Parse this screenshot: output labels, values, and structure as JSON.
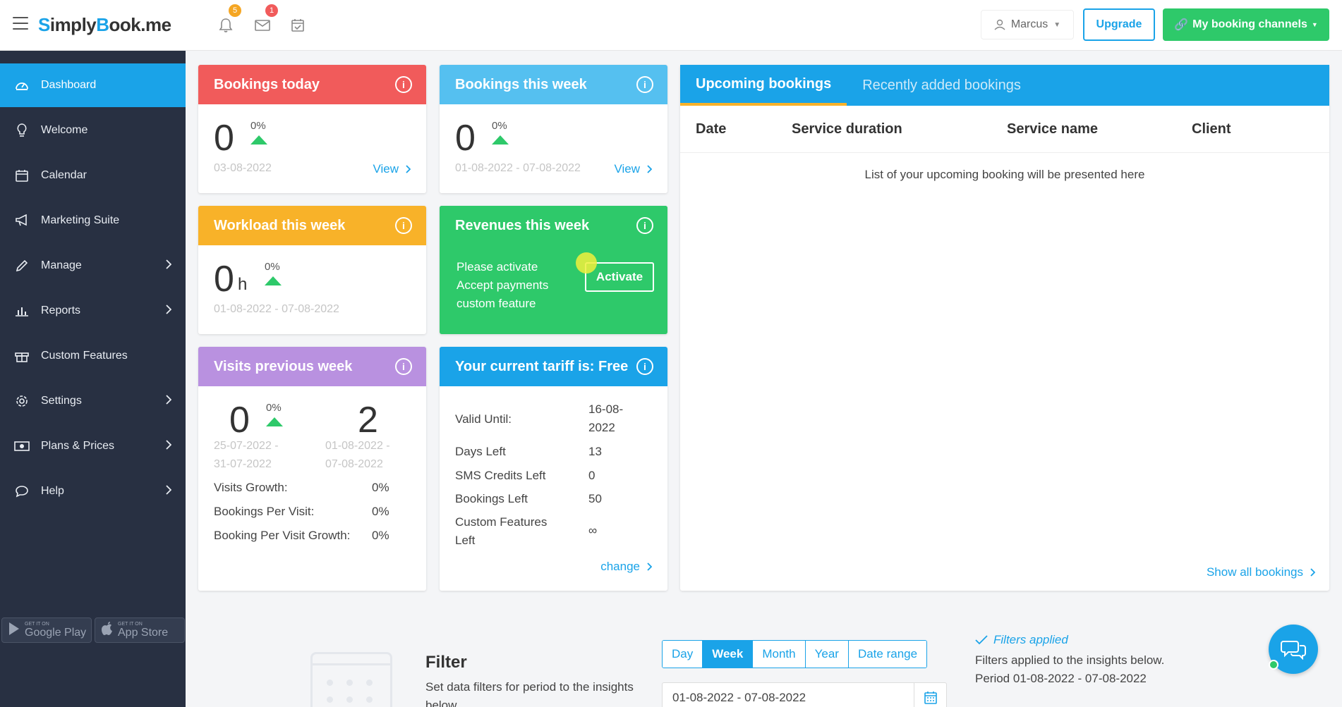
{
  "app": {
    "logo_prefix": "S",
    "logo_mid": "imply",
    "logo_b": "B",
    "logo_rest": "ook.me"
  },
  "topbar": {
    "notifications_count": "5",
    "messages_count": "1",
    "user_name": "Marcus",
    "upgrade_label": "Upgrade",
    "channels_label": "My booking channels"
  },
  "sidebar": {
    "items": [
      {
        "label": "Dashboard",
        "icon": "dashboard-icon"
      },
      {
        "label": "Welcome",
        "icon": "bulb-icon"
      },
      {
        "label": "Calendar",
        "icon": "calendar-icon"
      },
      {
        "label": "Marketing Suite",
        "icon": "megaphone-icon"
      },
      {
        "label": "Manage",
        "icon": "pencil-icon"
      },
      {
        "label": "Reports",
        "icon": "bar-chart-icon"
      },
      {
        "label": "Custom Features",
        "icon": "gift-icon"
      },
      {
        "label": "Settings",
        "icon": "gear-icon"
      },
      {
        "label": "Plans & Prices",
        "icon": "money-icon"
      },
      {
        "label": "Help",
        "icon": "speech-bubble-icon"
      }
    ],
    "google_play_small": "GET IT ON",
    "google_play": "Google Play",
    "app_store_small": "GET IT ON",
    "app_store": "App Store"
  },
  "cards": {
    "bookings_today": {
      "title": "Bookings today",
      "value": "0",
      "pct": "0%",
      "date": "03-08-2022",
      "link": "View"
    },
    "bookings_week": {
      "title": "Bookings this week",
      "value": "0",
      "pct": "0%",
      "date": "01-08-2022 - 07-08-2022",
      "link": "View"
    },
    "workload_week": {
      "title": "Workload this week",
      "value": "0",
      "unit": "h",
      "pct": "0%",
      "date": "01-08-2022 - 07-08-2022"
    },
    "revenues_week": {
      "title": "Revenues this week",
      "line1": "Please activate",
      "line2": "Accept payments",
      "line3": "custom feature",
      "button": "Activate"
    },
    "visits_prev_week": {
      "title": "Visits previous week",
      "left_value": "0",
      "pct": "0%",
      "left_date1": "25-07-2022 -",
      "left_date2": "31-07-2022",
      "right_value": "2",
      "right_date1": "01-08-2022 -",
      "right_date2": "07-08-2022",
      "stats": [
        {
          "label": "Visits Growth:",
          "value": "0%"
        },
        {
          "label": "Bookings Per Visit:",
          "value": "0%"
        },
        {
          "label": "Booking Per Visit Growth:",
          "value": "0%"
        }
      ]
    },
    "tariff": {
      "title": "Your current tariff is: Free",
      "valid_label": "Valid Until:",
      "valid_value1": "16-08-",
      "valid_value2": "2022",
      "days_label": "Days Left",
      "days_value": "13",
      "sms_label": "SMS Credits Left",
      "sms_value": "0",
      "bookings_label": "Bookings Left",
      "bookings_value": "50",
      "custom_label1": "Custom Features",
      "custom_label2": "Left",
      "custom_value": "∞",
      "link": "change"
    }
  },
  "bookings_panel": {
    "tabs": [
      "Upcoming bookings",
      "Recently added bookings"
    ],
    "columns": [
      "Date",
      "Service duration",
      "Service name",
      "Client"
    ],
    "empty_text": "List of your upcoming booking will be presented here",
    "show_all": "Show all bookings"
  },
  "filter": {
    "title": "Filter",
    "description": "Set data filters for period to the insights below",
    "periods": [
      "Day",
      "Week",
      "Month",
      "Year",
      "Date range"
    ],
    "selected_period": "Week",
    "date_value": "01-08-2022 - 07-08-2022",
    "applied_title": "Filters applied",
    "applied_desc1": "Filters applied to the insights below.",
    "applied_desc2": "Period 01-08-2022 - 07-08-2022"
  },
  "colors": {
    "accent": "#1aa3e8",
    "green": "#2ec96a",
    "red": "#f15b5b",
    "orange": "#f8b229",
    "purple": "#b991e0",
    "light_blue": "#55c0f0",
    "sidebar": "#283042"
  }
}
